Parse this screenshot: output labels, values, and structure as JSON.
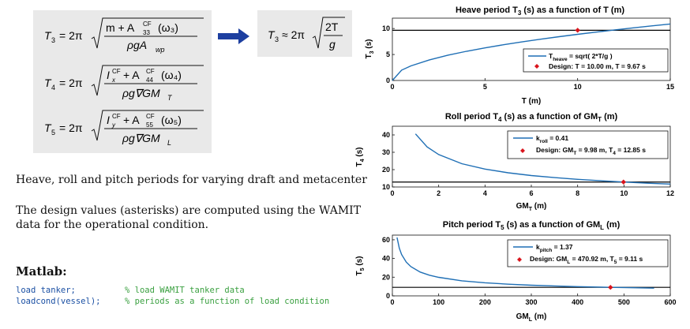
{
  "formulas": {
    "heave_lhs": "T",
    "heave_lhs_sub": "3",
    "roll_lhs": "T",
    "roll_lhs_sub": "4",
    "pitch_lhs": "T",
    "pitch_lhs_sub": "5",
    "heave_num": "m + A",
    "heave_num_sup": "CF",
    "heave_num_sub": "33",
    "heave_num_tail": "(ω₃)",
    "heave_den": "ρgA",
    "heave_den_sub": "wp",
    "roll_num_head": "I",
    "roll_num_head_sup": "CF",
    "roll_num_head_sub": "x",
    "roll_num_mid": " + A",
    "roll_num_sup": "CF",
    "roll_num_sub": "44",
    "roll_num_tail": "(ω₄)",
    "roll_den": "ρg∇GM",
    "roll_den_sub": "T",
    "pitch_num_head": "I",
    "pitch_num_head_sup": "CF",
    "pitch_num_head_sub": "y",
    "pitch_num_mid": " + A",
    "pitch_num_sup": "CF",
    "pitch_num_sub": "55",
    "pitch_num_tail": "(ω₅)",
    "pitch_den": "ρg∇GM",
    "pitch_den_sub": "L",
    "prefix": "= 2π",
    "approx_lhs": "T",
    "approx_lhs_sub": "3",
    "approx_prefix": "≈ 2π",
    "approx_num": "2T",
    "approx_den": "g"
  },
  "text": {
    "para1": "Heave, roll and pitch periods for varying draft and metacenter",
    "para2_line1": "The design values (asterisks) are computed using the WAMIT",
    "para2_line2": "data for the operational condition.",
    "matlab_heading": "Matlab:",
    "code_line1": "load tanker;",
    "code_line2": "loadcond(vessel);",
    "comment_line1": "% load WAMIT tanker data",
    "comment_line2": "% periods as a function of load condition"
  },
  "colors": {
    "curve": "#1f6fb5",
    "design_marker": "#d9141c",
    "reference_line": "#000000",
    "arrow": "#1d3fa0",
    "code": "#1a4fa3",
    "comment": "#3aa040"
  },
  "chart_data": [
    {
      "type": "line",
      "title": "Heave period T₃ (s) as a function of T (m)",
      "xlabel": "T (m)",
      "ylabel": "T₃ (s)",
      "xlim": [
        0,
        15
      ],
      "ylim": [
        0,
        12
      ],
      "xticks": [
        0,
        5,
        10,
        15
      ],
      "yticks": [
        0,
        5,
        10
      ],
      "series": [
        {
          "name": "T_heave = sqrt( 2*T/g )",
          "x": [
            0,
            0.5,
            1,
            2,
            3,
            4,
            5,
            6,
            7,
            8,
            9,
            10,
            11,
            12,
            13,
            14,
            15
          ],
          "y": [
            0,
            1.99,
            2.81,
            3.97,
            4.87,
            5.62,
            6.28,
            6.88,
            7.43,
            7.94,
            8.43,
            8.88,
            9.31,
            9.73,
            10.13,
            10.51,
            10.88
          ]
        },
        {
          "name": "Design: T = 10.00 m, T = 9.67 s",
          "x": [
            10.0
          ],
          "y": [
            9.67
          ]
        }
      ],
      "reference_line": 9.67,
      "legend_labels": [
        "T",
        "heave",
        " = sqrt( 2*T/g )",
        "Design: T = 10.00 m, T = 9.67 s"
      ],
      "legend": "bottom-right"
    },
    {
      "type": "line",
      "title": "Roll period T₄ (s) as a function of GM_T (m)",
      "xlabel": "GM_T (m)",
      "ylabel": "T₄ (s)",
      "xlim": [
        0,
        12
      ],
      "ylim": [
        10,
        45
      ],
      "xticks": [
        0,
        2,
        4,
        6,
        8,
        10,
        12
      ],
      "yticks": [
        10,
        20,
        30,
        40
      ],
      "series": [
        {
          "name": "k_roll = 0.41",
          "x": [
            1,
            1.5,
            2,
            3,
            4,
            5,
            6,
            7,
            8,
            9,
            9.98,
            11,
            12
          ],
          "y": [
            40.6,
            33.1,
            28.7,
            23.4,
            20.3,
            18.2,
            16.6,
            15.4,
            14.4,
            13.6,
            12.85,
            12.2,
            11.7
          ]
        },
        {
          "name": "Design: GM_T = 9.98 m, T₄ = 12.85 s",
          "x": [
            9.98
          ],
          "y": [
            12.85
          ]
        }
      ],
      "reference_line": 12.85,
      "legend_labels": [
        "k",
        "roll",
        " = 0.41",
        "Design: GM",
        "T",
        " = 9.98 m, T",
        "4",
        " = 12.85 s"
      ],
      "legend": "top-right"
    },
    {
      "type": "line",
      "title": "Pitch period T₅ (s) as a function of GM_L (m)",
      "xlabel": "GM_L (m)",
      "ylabel": "T₅ (s)",
      "xlim": [
        0,
        600
      ],
      "ylim": [
        0,
        65
      ],
      "xticks": [
        0,
        100,
        200,
        300,
        400,
        500,
        600
      ],
      "yticks": [
        0,
        20,
        40,
        60
      ],
      "series": [
        {
          "name": "k_pitch = 1.37",
          "x": [
            10,
            15,
            20,
            30,
            40,
            60,
            80,
            100,
            150,
            200,
            250,
            300,
            350,
            400,
            470.92,
            520,
            565
          ],
          "y": [
            62.5,
            51.0,
            44.2,
            36.1,
            31.2,
            25.5,
            22.1,
            19.8,
            16.1,
            14.0,
            12.5,
            11.4,
            10.6,
            9.9,
            9.11,
            8.7,
            8.3
          ]
        },
        {
          "name": "Design: GM_L = 470.92 m, T₅ = 9.11 s",
          "x": [
            470.92
          ],
          "y": [
            9.11
          ]
        }
      ],
      "reference_line": 9.11,
      "legend_labels": [
        "k",
        "pitch",
        " = 1.37",
        "Design: GM",
        "L",
        " = 470.92 m, T",
        "5",
        " = 9.11 s"
      ],
      "legend": "top-right"
    }
  ]
}
